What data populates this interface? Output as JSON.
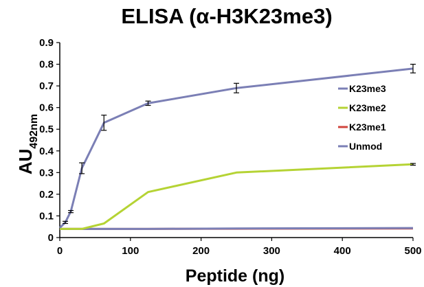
{
  "chart_data": {
    "type": "line",
    "title": "ELISA (α-H3K23me3)",
    "xlabel": "Peptide (ng)",
    "ylabel_main": "AU",
    "ylabel_sub": "492nm",
    "xlim": [
      0,
      500
    ],
    "ylim": [
      0,
      0.9
    ],
    "x_ticks": [
      "0",
      "100",
      "200",
      "300",
      "400",
      "500"
    ],
    "y_ticks": [
      "0",
      "0.1",
      "0.2",
      "0.3",
      "0.4",
      "0.5",
      "0.6",
      "0.7",
      "0.8",
      "0.9"
    ],
    "grid": false,
    "legend_position": "right",
    "series": [
      {
        "name": "K23me3",
        "color": "#7b7fb5",
        "x": [
          0,
          7.8,
          15.6,
          31.25,
          62.5,
          125,
          250,
          500
        ],
        "y": [
          0.045,
          0.07,
          0.12,
          0.32,
          0.53,
          0.62,
          0.69,
          0.78
        ],
        "err": [
          0,
          0.005,
          0.005,
          0.025,
          0.035,
          0.01,
          0.022,
          0.02
        ]
      },
      {
        "name": "K23me2",
        "color": "#b5d334",
        "x": [
          0,
          31.25,
          62.5,
          125,
          250,
          500
        ],
        "y": [
          0.04,
          0.04,
          0.065,
          0.21,
          0.3,
          0.338
        ],
        "err": [
          0,
          0,
          0,
          0,
          0,
          0.004
        ]
      },
      {
        "name": "K23me1",
        "color": "#d0443c",
        "x": [
          0,
          31.25,
          125,
          250,
          500
        ],
        "y": [
          0.04,
          0.04,
          0.04,
          0.041,
          0.042
        ],
        "err": [
          0,
          0,
          0,
          0,
          0
        ]
      },
      {
        "name": "Unmod",
        "color": "#7b7fb5",
        "x": [
          0,
          31.25,
          125,
          250,
          500
        ],
        "y": [
          0.04,
          0.04,
          0.04,
          0.042,
          0.044
        ],
        "err": [
          0,
          0,
          0,
          0,
          0
        ]
      }
    ]
  }
}
